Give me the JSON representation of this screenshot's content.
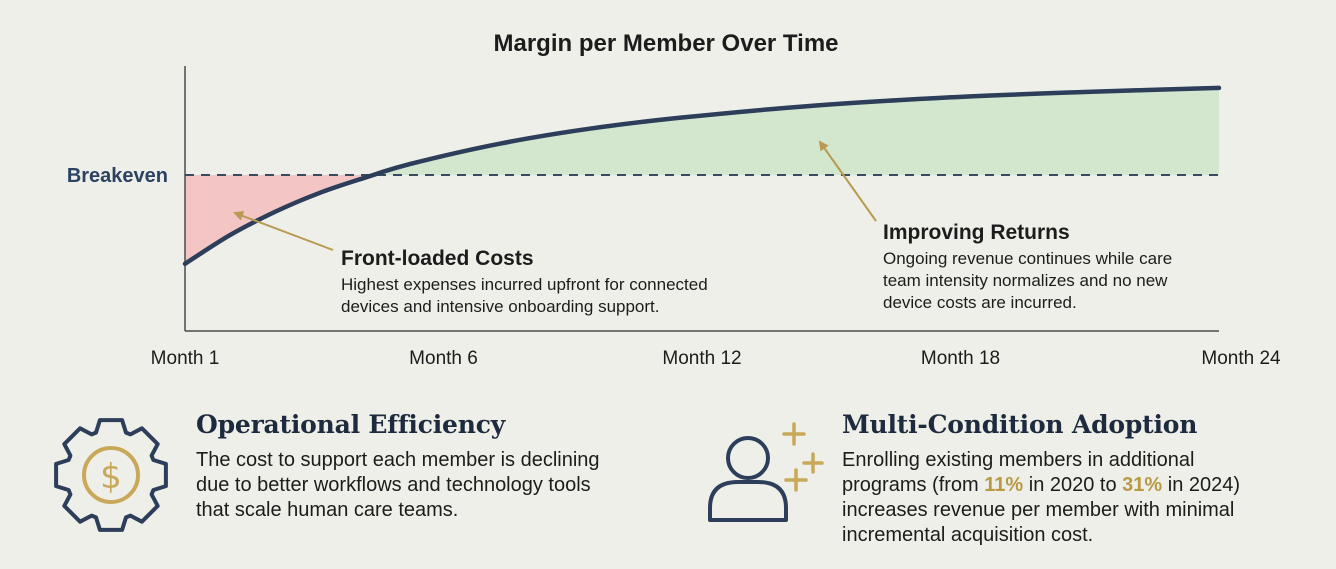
{
  "chart_data": {
    "type": "area",
    "title": "Margin per Member Over Time",
    "xlabel": "",
    "ylabel": "",
    "x_ticks": [
      "Month 1",
      "Month 6",
      "Month 12",
      "Month 18",
      "Month 24"
    ],
    "baseline_label": "Breakeven",
    "grid": false,
    "series": [
      {
        "x": [
          1,
          2,
          3,
          4,
          5,
          6,
          8,
          10,
          12,
          15,
          18,
          21,
          24
        ],
        "y": [
          -65,
          -44,
          -27,
          -13,
          -2,
          8,
          23,
          34,
          42,
          51,
          57,
          61,
          64
        ]
      }
    ],
    "ylim": [
      -90,
      72
    ],
    "annotations": [
      {
        "title": "Front-loaded Costs",
        "text": "Highest expenses incurred upfront for connected devices and intensive onboarding support."
      },
      {
        "title": "Improving Returns",
        "text": "Ongoing revenue continues while care team intensity normalizes and no new device costs are incurred."
      }
    ],
    "colors": {
      "curve": "#2c3e5a",
      "loss_fill": "#f4c5c5",
      "profit_fill": "#d2e7cd",
      "arrow": "#b89a52",
      "baseline": "#3a4a60"
    }
  },
  "cards": [
    {
      "icon": "gear-dollar-icon",
      "title": "Operational Efficiency",
      "lines": [
        "The cost to support each member is declining",
        "due to better workflows and technology tools",
        "that scale human care teams."
      ]
    },
    {
      "icon": "user-plus-icon",
      "title": "Multi-Condition Adoption",
      "line1": "Enrolling existing members in additional",
      "line2_pre": "programs (from ",
      "line2_h1": "11%",
      "line2_mid": " in 2020 to ",
      "line2_h2": "31%",
      "line2_post": " in 2024)",
      "line3": "increases revenue per member with minimal",
      "line4": "incremental acquisition cost."
    }
  ],
  "icon_color": "#2c3e5a",
  "accent_color": "#c9a959"
}
